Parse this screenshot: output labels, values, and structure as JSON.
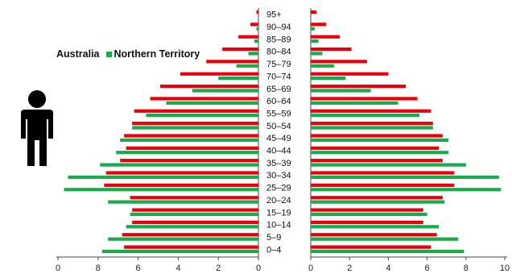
{
  "legend": {
    "series_a": "Australia",
    "series_b": "Northern Territory"
  },
  "colors": {
    "male_australia": "#e8000b",
    "female_australia": "#e8000b",
    "northern_territory": "#1aaa4a",
    "axis": "#444444",
    "icon": "#000000"
  },
  "icon": "male-person-icon",
  "chart_data": {
    "type": "bar",
    "orientation": "horizontal",
    "subtype": "population-pyramid",
    "categories": [
      "0–4",
      "5–9",
      "10–14",
      "15–19",
      "20–24",
      "25–29",
      "30–34",
      "35–39",
      "40–44",
      "45–49",
      "50–54",
      "55–59",
      "60–64",
      "65–69",
      "70–74",
      "75–79",
      "80–84",
      "85–89",
      "90–94",
      "95+"
    ],
    "panels": [
      {
        "side": "left",
        "xlim": [
          0,
          10
        ],
        "reversed": true,
        "ticks": [
          "0",
          "8",
          "6",
          "4",
          "2",
          "0"
        ],
        "series": [
          {
            "name": "Australia",
            "values": [
              6.7,
              6.8,
              6.3,
              6.3,
              6.4,
              7.7,
              7.6,
              6.9,
              6.6,
              6.7,
              6.3,
              6.2,
              5.4,
              4.9,
              3.9,
              2.6,
              1.8,
              1.0,
              0.4,
              0.1
            ]
          },
          {
            "name": "Northern Territory",
            "values": [
              7.8,
              7.5,
              6.6,
              6.4,
              7.5,
              9.7,
              9.5,
              7.9,
              7.1,
              6.9,
              6.3,
              5.6,
              4.6,
              3.3,
              2.0,
              1.1,
              0.5,
              0.2,
              0.1,
              0.0
            ]
          }
        ]
      },
      {
        "side": "right",
        "xlim": [
          0,
          10
        ],
        "reversed": false,
        "ticks": [
          "0",
          "2",
          "4",
          "6",
          "8",
          "10"
        ],
        "series": [
          {
            "name": "Australia",
            "values": [
              6.2,
              6.5,
              5.8,
              5.8,
              6.8,
              7.4,
              7.4,
              6.8,
              6.6,
              6.8,
              6.3,
              6.2,
              5.5,
              4.9,
              4.0,
              2.9,
              2.1,
              1.5,
              0.8,
              0.3
            ]
          },
          {
            "name": "Northern Territory",
            "values": [
              7.9,
              7.6,
              6.6,
              6.0,
              6.9,
              9.8,
              9.7,
              8.0,
              7.1,
              7.1,
              6.3,
              5.6,
              4.5,
              3.1,
              1.8,
              1.2,
              0.6,
              0.4,
              0.2,
              0.0
            ]
          }
        ]
      }
    ]
  }
}
